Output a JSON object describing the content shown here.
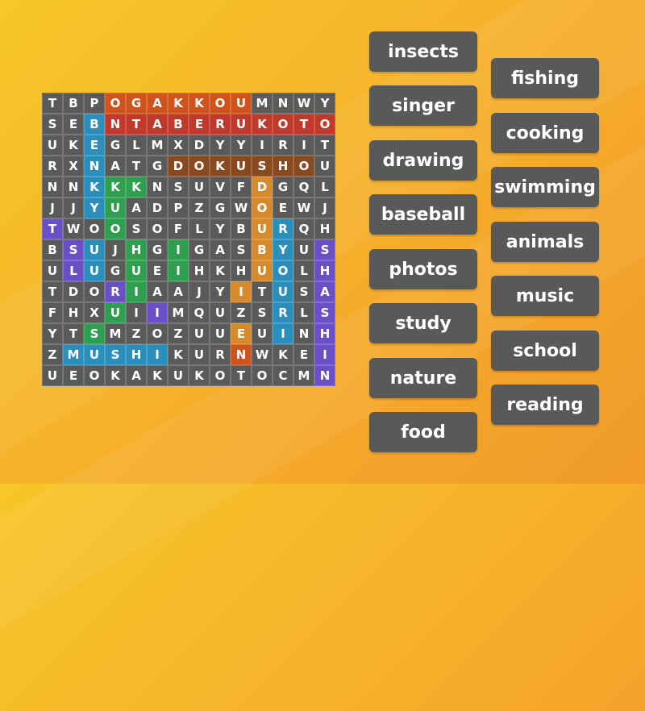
{
  "puzzle": {
    "rows": [
      "TBPOGAKKOUMNWY",
      "SEBNTABERUKOTO",
      "UKEGLMXDYYIRIT",
      "RXNATGDOKUSHOU",
      "NNKKKNSUVFDGQL",
      "JJYUADPZGWOEWJ",
      "TWOOSOFLYBURQH",
      "BSUJHGIGASBYUS",
      "ULUGUEIHKHUOLH",
      "TDORIAAJYITUSA",
      "FHXUIIMQUZSRLS",
      "YTSMZOZUUEUINH",
      "ZMUSHIKURNWKEI",
      "UEOKAKUKOTOCMN"
    ],
    "colors": [
      [
        "#5a5a5a",
        "#5a5a5a",
        "#5a5a5a",
        "#d0531c",
        "#d0531c",
        "#d0531c",
        "#d0531c",
        "#d0531c",
        "#d0531c",
        "#d0531c",
        "#5a5a5a",
        "#5a5a5a",
        "#5a5a5a",
        "#5a5a5a"
      ],
      [
        "#5a5a5a",
        "#5a5a5a",
        "#2a8fbd",
        "#c0392b",
        "#c0392b",
        "#c0392b",
        "#c0392b",
        "#c0392b",
        "#c0392b",
        "#c0392b",
        "#c0392b",
        "#c0392b",
        "#c0392b",
        "#c0392b"
      ],
      [
        "#5a5a5a",
        "#5a5a5a",
        "#2a8fbd",
        "#5a5a5a",
        "#5a5a5a",
        "#5a5a5a",
        "#5a5a5a",
        "#5a5a5a",
        "#5a5a5a",
        "#5a5a5a",
        "#5a5a5a",
        "#5a5a5a",
        "#5a5a5a",
        "#5a5a5a"
      ],
      [
        "#5a5a5a",
        "#5a5a5a",
        "#2a8fbd",
        "#5a5a5a",
        "#5a5a5a",
        "#5a5a5a",
        "#8a4a1f",
        "#8a4a1f",
        "#8a4a1f",
        "#8a4a1f",
        "#8a4a1f",
        "#8a4a1f",
        "#8a4a1f",
        "#5a5a5a"
      ],
      [
        "#5a5a5a",
        "#5a5a5a",
        "#2a8fbd",
        "#2e9e4f",
        "#2e9e4f",
        "#5a5a5a",
        "#5a5a5a",
        "#5a5a5a",
        "#5a5a5a",
        "#5a5a5a",
        "#d88a2a",
        "#5a5a5a",
        "#5a5a5a",
        "#5a5a5a"
      ],
      [
        "#5a5a5a",
        "#5a5a5a",
        "#2a8fbd",
        "#2e9e4f",
        "#5a5a5a",
        "#5a5a5a",
        "#5a5a5a",
        "#5a5a5a",
        "#5a5a5a",
        "#5a5a5a",
        "#d88a2a",
        "#5a5a5a",
        "#5a5a5a",
        "#5a5a5a"
      ],
      [
        "#6a4fc6",
        "#5a5a5a",
        "#5a5a5a",
        "#2e9e4f",
        "#5a5a5a",
        "#5a5a5a",
        "#5a5a5a",
        "#5a5a5a",
        "#5a5a5a",
        "#5a5a5a",
        "#d88a2a",
        "#2a8fbd",
        "#5a5a5a",
        "#5a5a5a"
      ],
      [
        "#5a5a5a",
        "#6a4fc6",
        "#2a8fbd",
        "#5a5a5a",
        "#2e9e4f",
        "#5a5a5a",
        "#2e9e4f",
        "#5a5a5a",
        "#5a5a5a",
        "#5a5a5a",
        "#d88a2a",
        "#2a8fbd",
        "#5a5a5a",
        "#6a4fc6"
      ],
      [
        "#5a5a5a",
        "#6a4fc6",
        "#2a8fbd",
        "#5a5a5a",
        "#2e9e4f",
        "#5a5a5a",
        "#2e9e4f",
        "#5a5a5a",
        "#5a5a5a",
        "#5a5a5a",
        "#d88a2a",
        "#2a8fbd",
        "#5a5a5a",
        "#6a4fc6"
      ],
      [
        "#5a5a5a",
        "#5a5a5a",
        "#5a5a5a",
        "#6a4fc6",
        "#2e9e4f",
        "#5a5a5a",
        "#5a5a5a",
        "#5a5a5a",
        "#5a5a5a",
        "#d88a2a",
        "#5a5a5a",
        "#2a8fbd",
        "#5a5a5a",
        "#6a4fc6"
      ],
      [
        "#5a5a5a",
        "#5a5a5a",
        "#5a5a5a",
        "#2e9e4f",
        "#5a5a5a",
        "#6a4fc6",
        "#5a5a5a",
        "#5a5a5a",
        "#5a5a5a",
        "#5a5a5a",
        "#5a5a5a",
        "#2a8fbd",
        "#5a5a5a",
        "#6a4fc6"
      ],
      [
        "#5a5a5a",
        "#5a5a5a",
        "#2e9e4f",
        "#5a5a5a",
        "#5a5a5a",
        "#5a5a5a",
        "#5a5a5a",
        "#5a5a5a",
        "#5a5a5a",
        "#d88a2a",
        "#5a5a5a",
        "#2a8fbd",
        "#5a5a5a",
        "#6a4fc6"
      ],
      [
        "#5a5a5a",
        "#2a8fbd",
        "#2a8fbd",
        "#2a8fbd",
        "#2a8fbd",
        "#2a8fbd",
        "#5a5a5a",
        "#5a5a5a",
        "#5a5a5a",
        "#d0531c",
        "#5a5a5a",
        "#5a5a5a",
        "#5a5a5a",
        "#6a4fc6"
      ],
      [
        "#5a5a5a",
        "#5a5a5a",
        "#5a5a5a",
        "#5a5a5a",
        "#5a5a5a",
        "#5a5a5a",
        "#5a5a5a",
        "#5a5a5a",
        "#5a5a5a",
        "#5a5a5a",
        "#5a5a5a",
        "#5a5a5a",
        "#5a5a5a",
        "#6a4fc6"
      ]
    ]
  },
  "words": [
    {
      "label": "insects"
    },
    {
      "label": "singer"
    },
    {
      "label": "drawing"
    },
    {
      "label": "baseball"
    },
    {
      "label": "photos"
    },
    {
      "label": "study"
    },
    {
      "label": "nature"
    },
    {
      "label": "food"
    },
    {
      "label": "fishing"
    },
    {
      "label": "cooking"
    },
    {
      "label": "swimming"
    },
    {
      "label": "animals"
    },
    {
      "label": "music"
    },
    {
      "label": "school"
    },
    {
      "label": "reading"
    }
  ],
  "theme": {
    "button_bg": "#595959",
    "cell_bg": "#5a5a5a"
  }
}
